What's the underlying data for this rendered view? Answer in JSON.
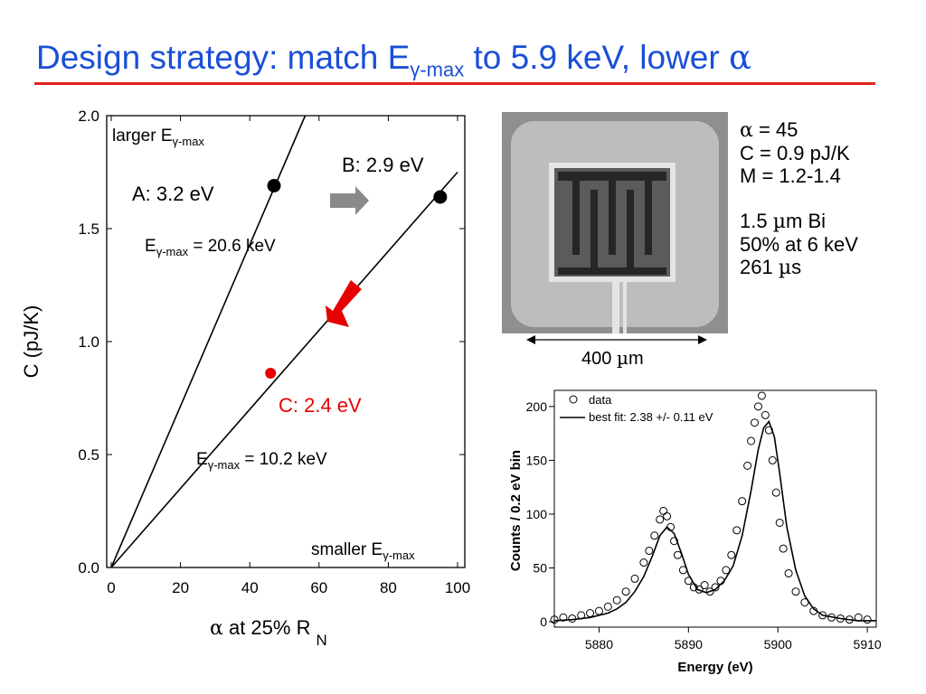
{
  "slide": {
    "title_prefix": "Design strategy: match E",
    "title_sub": "γ-max",
    "title_suffix": " to 5.9 keV, lower ",
    "title_symbol": "α"
  },
  "colors": {
    "title": "#1a4fd6",
    "rule": "#e0261f",
    "highlight": "#e60000",
    "arrow": "#8a8a8a"
  },
  "device": {
    "scale_value": "400 ",
    "scale_unit_symbol": "µ",
    "scale_unit": "m",
    "specs": [
      {
        "sym": "α",
        "text": " = 45"
      },
      {
        "sym": "",
        "text": "C = 0.9 pJ/K"
      },
      {
        "sym": "",
        "text": "M = 1.2-1.4"
      },
      {
        "sym": "",
        "text": ""
      },
      {
        "sym": "",
        "text": "1.5 ",
        "sym2": "µ",
        "text2": "m Bi"
      },
      {
        "sym": "",
        "text": "50% at 6 keV"
      },
      {
        "sym": "",
        "text": "261 ",
        "sym2": "µ",
        "text2": "s"
      }
    ]
  },
  "chart_data": [
    {
      "type": "line",
      "title": "",
      "xlabel_symbol": "α",
      "xlabel": " at 25% R",
      "xlabel_sub": "N",
      "ylabel": "C (pJ/K)",
      "xlim": [
        0,
        100
      ],
      "ylim": [
        0,
        2.0
      ],
      "xticks": [
        0,
        20,
        40,
        60,
        80,
        100
      ],
      "yticks": [
        "0.0",
        "0.5",
        "1.0",
        "1.5",
        "2.0"
      ],
      "series": [
        {
          "name": "",
          "x": [
            0,
            56
          ],
          "y": [
            0,
            2.0
          ]
        },
        {
          "name": "",
          "x": [
            0,
            100
          ],
          "y": [
            0,
            1.75
          ]
        }
      ],
      "points": [
        {
          "label": "A: 3.2 eV",
          "x": 47,
          "y": 1.69,
          "color": "#000000"
        },
        {
          "label": "B: 2.9 eV",
          "x": 95,
          "y": 1.64,
          "color": "#000000"
        },
        {
          "label": "C: 2.4 eV",
          "x": 46,
          "y": 0.86,
          "color": "#e60000"
        }
      ],
      "annotations": [
        {
          "main": "larger E",
          "sub": "γ-max",
          "rest": ""
        },
        {
          "main": "E",
          "sub": "γ-max",
          "rest": " = 20.6 keV"
        },
        {
          "main": "E",
          "sub": "γ-max",
          "rest": " = 10.2 keV"
        },
        {
          "main": "smaller E",
          "sub": "γ-max",
          "rest": ""
        }
      ]
    },
    {
      "type": "scatter",
      "title": "",
      "xlabel": "Energy (eV)",
      "ylabel": "Counts / 0.2 eV bin",
      "xlim": [
        5875,
        5911
      ],
      "ylim": [
        -5,
        215
      ],
      "xticks": [
        5880,
        5890,
        5900,
        5910
      ],
      "yticks": [
        0,
        50,
        100,
        150,
        200
      ],
      "legend": [
        "data",
        "best fit: 2.38 +/- 0.11 eV"
      ],
      "legend_position": "top-left",
      "series": [
        {
          "name": "data",
          "x": [
            5875,
            5876,
            5877,
            5878,
            5879,
            5880,
            5881,
            5882,
            5883,
            5884,
            5885,
            5885.6,
            5886.2,
            5886.8,
            5887.2,
            5887.6,
            5888,
            5888.4,
            5888.8,
            5889.4,
            5890,
            5890.6,
            5891.2,
            5891.8,
            5892.4,
            5893,
            5893.6,
            5894.2,
            5894.8,
            5895.4,
            5896,
            5896.6,
            5897,
            5897.4,
            5897.8,
            5898.2,
            5898.6,
            5899,
            5899.4,
            5899.8,
            5900.2,
            5900.6,
            5901.2,
            5902,
            5903,
            5904,
            5905,
            5906,
            5907,
            5908,
            5909,
            5910
          ],
          "y": [
            2,
            4,
            3,
            6,
            8,
            10,
            14,
            20,
            28,
            40,
            55,
            66,
            80,
            95,
            103,
            98,
            88,
            75,
            62,
            48,
            38,
            32,
            30,
            34,
            28,
            32,
            38,
            48,
            62,
            85,
            112,
            145,
            168,
            185,
            200,
            210,
            192,
            178,
            150,
            120,
            92,
            68,
            45,
            28,
            18,
            10,
            6,
            4,
            3,
            2,
            4,
            2
          ]
        },
        {
          "name": "best fit: 2.38 +/- 0.11 eV",
          "x": [
            5875,
            5877,
            5879,
            5881,
            5882,
            5883,
            5884,
            5885,
            5886,
            5886.8,
            5887.6,
            5888.4,
            5889.2,
            5890,
            5891,
            5892,
            5893,
            5894,
            5895,
            5896,
            5897,
            5897.8,
            5898.4,
            5899,
            5899.6,
            5900.2,
            5901,
            5902,
            5903,
            5904,
            5905,
            5907,
            5909,
            5911
          ],
          "y": [
            1,
            2,
            4,
            8,
            12,
            18,
            28,
            42,
            62,
            80,
            88,
            82,
            64,
            44,
            30,
            27,
            30,
            38,
            52,
            80,
            122,
            160,
            180,
            186,
            172,
            138,
            88,
            48,
            24,
            12,
            6,
            3,
            1,
            1
          ]
        }
      ]
    }
  ]
}
